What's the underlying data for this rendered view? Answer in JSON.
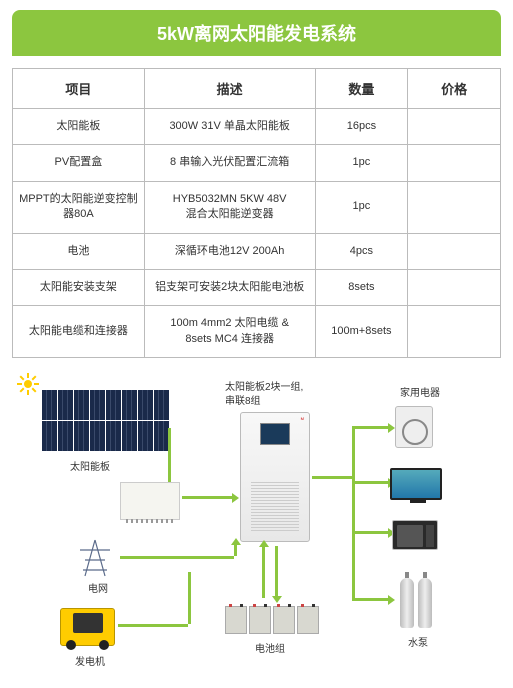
{
  "title": "5kW离网太阳能发电系统",
  "colors": {
    "accent": "#8cc63f",
    "border": "#bbbbbb"
  },
  "table": {
    "headers": {
      "item": "项目",
      "desc": "描述",
      "qty": "数量",
      "price": "价格"
    },
    "rows": [
      {
        "item": "太阳能板",
        "desc": "300W 31V 单晶太阳能板",
        "qty": "16pcs",
        "price": ""
      },
      {
        "item": "PV配置盒",
        "desc": "8 串输入光伏配置汇流箱",
        "qty": "1pc",
        "price": ""
      },
      {
        "item": "MPPT的太阳能逆变控制器80A",
        "desc": "HYB5032MN 5KW 48V\n混合太阳能逆变器",
        "qty": "1pc",
        "price": ""
      },
      {
        "item": "电池",
        "desc": "深循环电池12V 200Ah",
        "qty": "4pcs",
        "price": ""
      },
      {
        "item": "太阳能安装支架",
        "desc": "铝支架可安装2块太阳能电池板",
        "qty": "8sets",
        "price": ""
      },
      {
        "item": "太阳能电缆和连接器",
        "desc": "100m 4mm2 太阳电缆 &\n8sets MC4 连接器",
        "qty": "100m+8sets",
        "price": ""
      }
    ]
  },
  "diagram": {
    "labels": {
      "panels": "太阳能板",
      "panel_group_1": "太阳能板2块一组,",
      "panel_group_2": "串联8组",
      "appliances": "家用电器",
      "grid": "电网",
      "generator": "发电机",
      "battery": "电池组",
      "pump": "水泵"
    },
    "panel_count": 16,
    "battery_count": 4
  }
}
